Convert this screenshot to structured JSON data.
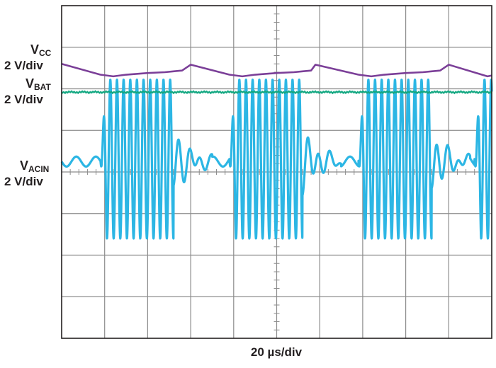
{
  "chart_data": {
    "type": "line",
    "title": "",
    "xlabel": "20 µs/div",
    "ylabel": "",
    "grid": true,
    "x_divisions": 10,
    "y_divisions": 8,
    "channels": [
      {
        "label_main": "V",
        "label_sub": "CC",
        "label_scale": "2 V/div",
        "color": "#7b3f98"
      },
      {
        "label_main": "V",
        "label_sub": "BAT",
        "label_scale": "2 V/div",
        "color": "#14a882"
      },
      {
        "label_main": "V",
        "label_sub": "ACIN",
        "label_scale": "2 V/div",
        "color": "#2cb6e4"
      }
    ],
    "series": [
      {
        "name": "VCC",
        "unit": "div",
        "description_points": "level in divisions from top of screen vs time in divisions",
        "x": [
          0,
          0.9,
          1.2,
          1.5,
          2.0,
          2.4,
          2.6,
          2.8,
          3.0,
          3.9,
          4.2,
          4.5,
          5.0,
          5.4,
          5.6,
          5.8,
          5.9,
          6.9,
          7.2,
          7.5,
          8.0,
          8.4,
          8.6,
          8.8,
          9.0,
          9.9,
          10.0
        ],
        "values": [
          1.4,
          1.66,
          1.7,
          1.66,
          1.62,
          1.6,
          1.58,
          1.56,
          1.42,
          1.66,
          1.7,
          1.66,
          1.62,
          1.6,
          1.58,
          1.56,
          1.42,
          1.66,
          1.7,
          1.66,
          1.62,
          1.6,
          1.58,
          1.56,
          1.42,
          1.7,
          1.68
        ]
      },
      {
        "name": "VBAT",
        "unit": "div",
        "x": [
          0,
          10
        ],
        "values": [
          2.08,
          2.08
        ]
      },
      {
        "name": "VACIN",
        "unit": "div",
        "burst_start_div": [
          0.9,
          3.9,
          6.9,
          9.6
        ],
        "burst_end_div": [
          2.6,
          5.6,
          8.6,
          10.0
        ],
        "burst_high_div": 1.78,
        "burst_low_div": 5.6,
        "idle_level_div": 3.75,
        "burst_cycles": 11
      }
    ]
  }
}
